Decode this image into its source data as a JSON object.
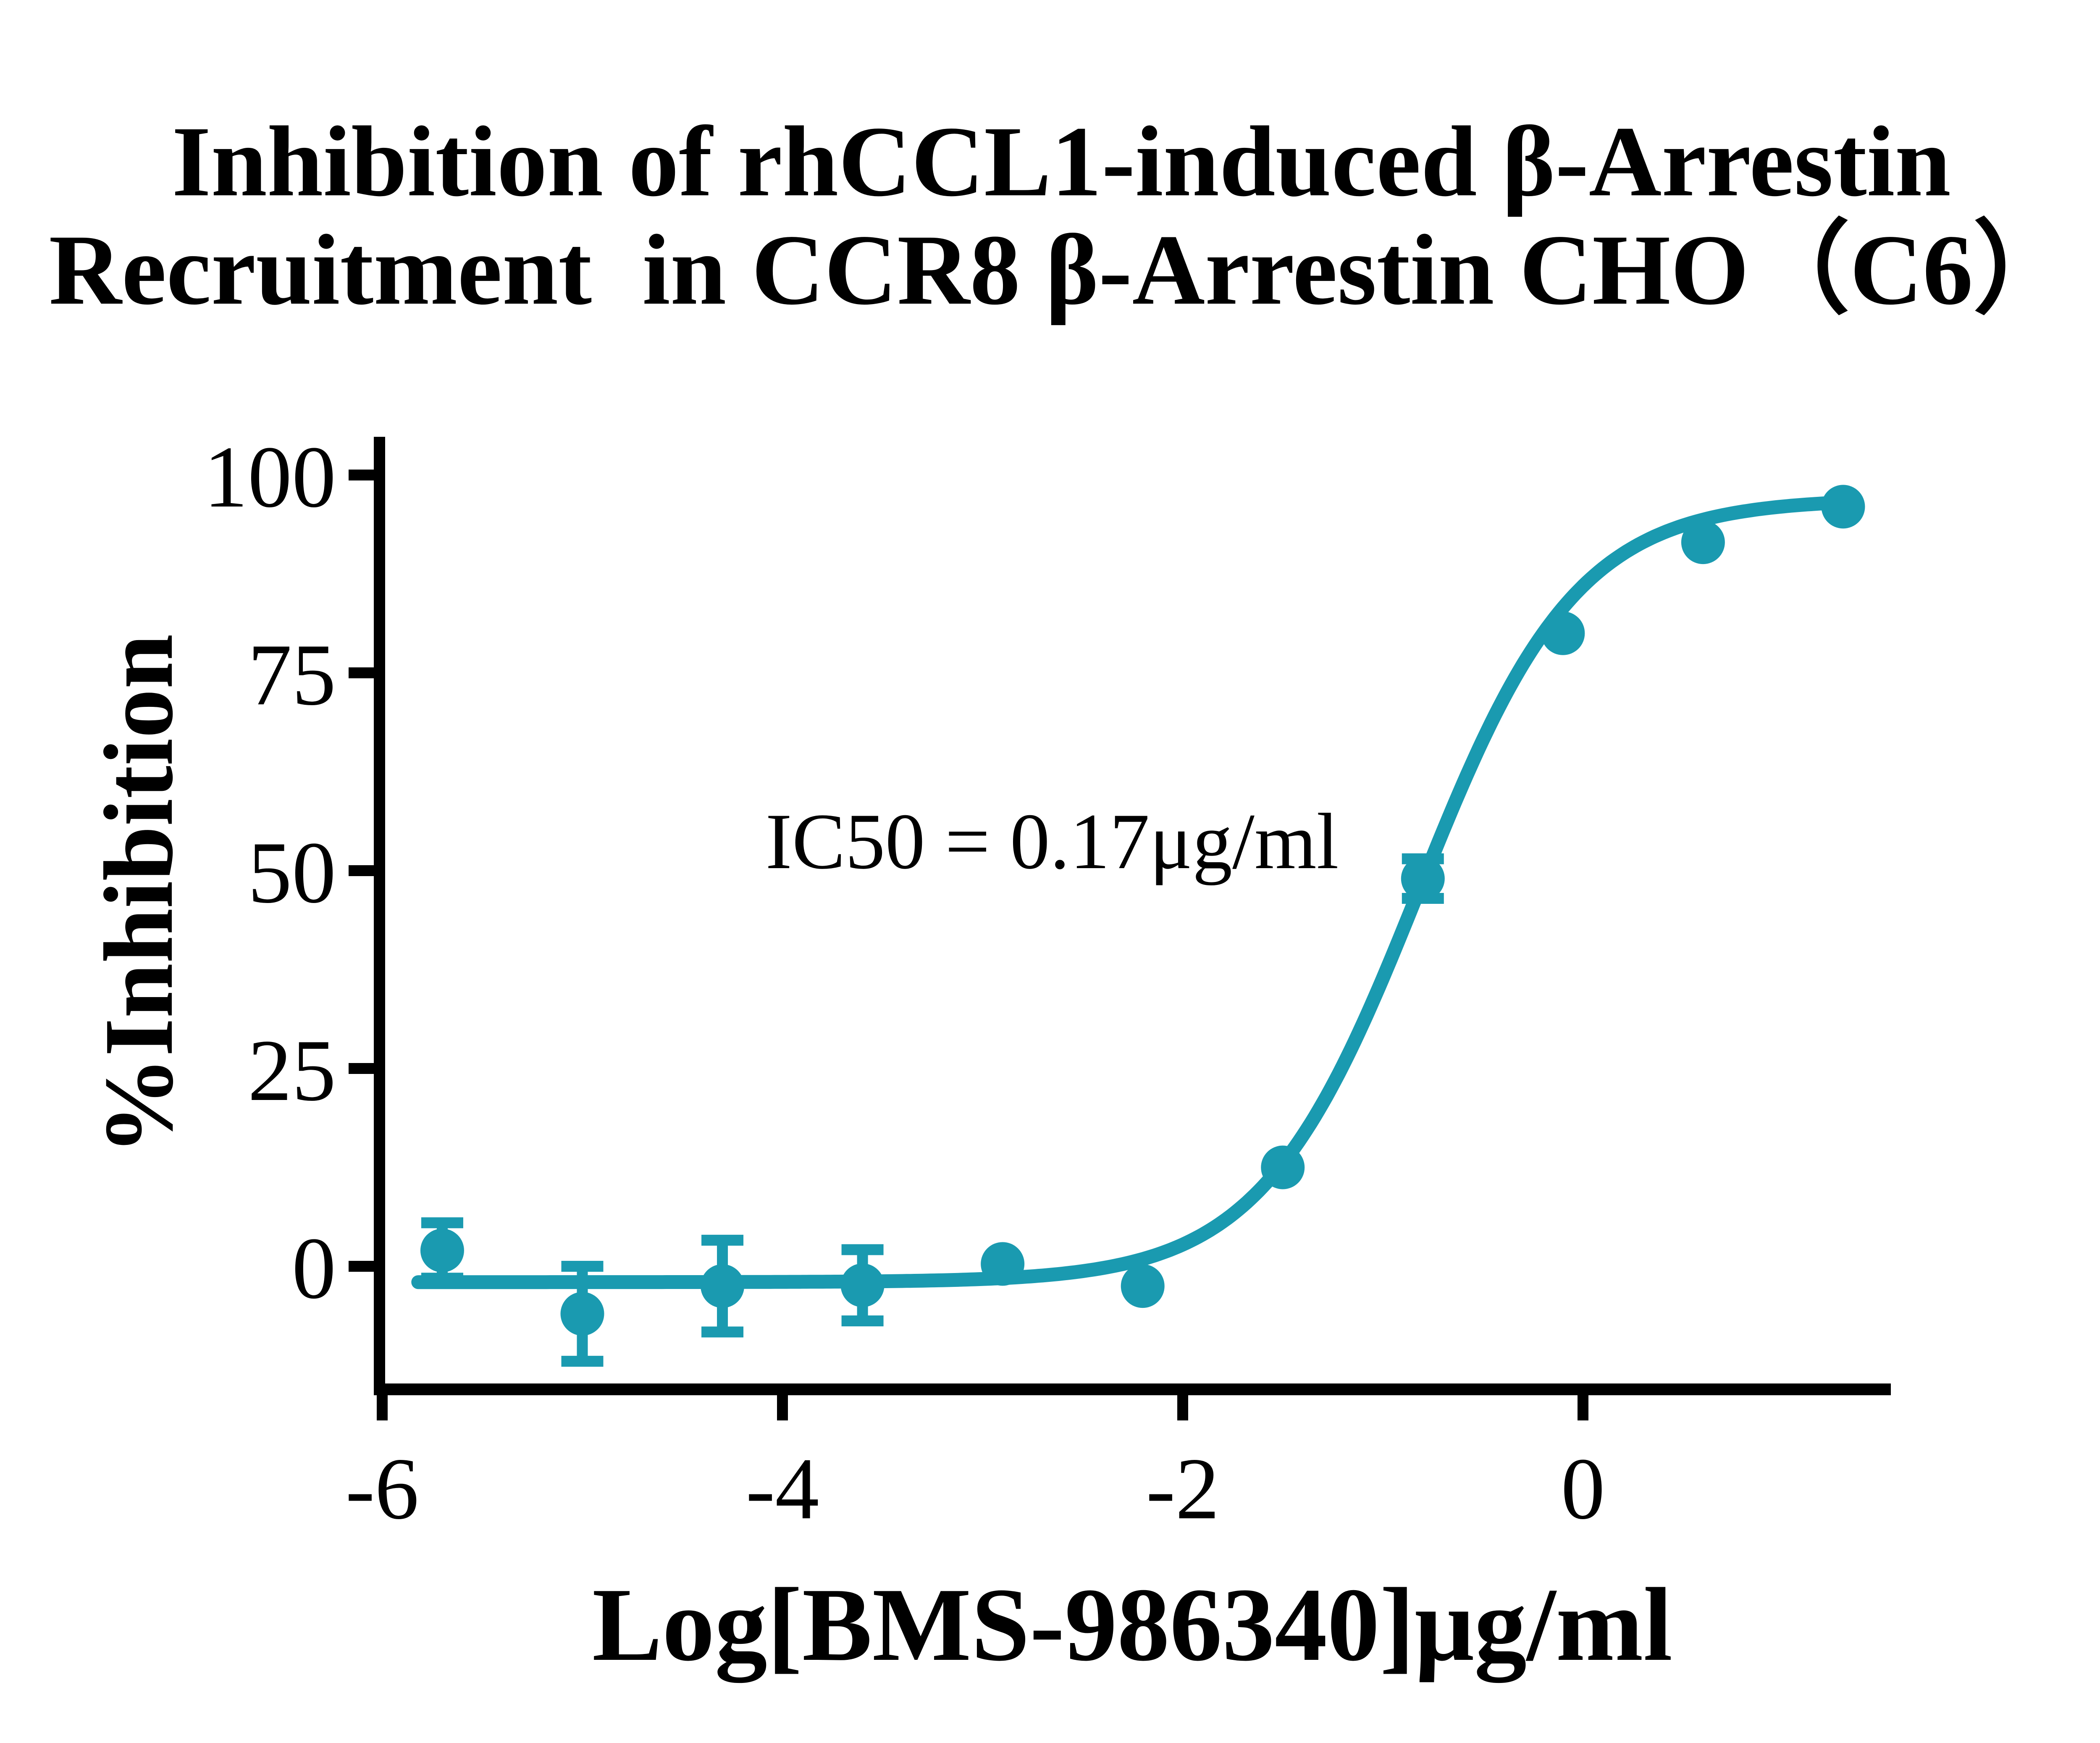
{
  "title": {
    "line1": "Inhibition of rhCCL1-induced β-Arrestin",
    "line2": "Recruitment  in CCR8 β-Arrestin CHO（C6）"
  },
  "annotation": {
    "text": "IC50 = 0.17μg/ml"
  },
  "colors": {
    "curve": "#1A9AB0",
    "axis": "#000000",
    "text": "#000000",
    "background": "#FFFFFF"
  },
  "chart_data": {
    "type": "scatter",
    "title": "Inhibition of rhCCL1-induced β-Arrestin Recruitment in CCR8 β-Arrestin CHO（C6）",
    "xlabel": "Log[BMS-986340]μg/ml",
    "ylabel": "%Inhibition",
    "x_ticks": [
      -6,
      -4,
      -2,
      0
    ],
    "x_tick_labels": [
      "-6",
      "-4",
      "-2",
      "0"
    ],
    "y_ticks": [
      0,
      25,
      50,
      75,
      100
    ],
    "y_tick_labels": [
      "0",
      "25",
      "50",
      "75",
      "100"
    ],
    "xlim": [
      -6.05,
      1.55
    ],
    "ylim": [
      -15.5,
      105
    ],
    "grid": false,
    "legend": "none",
    "points": [
      {
        "x": -5.7,
        "y": 2,
        "err": 3.5
      },
      {
        "x": -5.0,
        "y": -6,
        "err": 6
      },
      {
        "x": -4.3,
        "y": -2.5,
        "err": 5.8
      },
      {
        "x": -3.6,
        "y": -2.4,
        "err": 4.5
      },
      {
        "x": -2.9,
        "y": 0.3,
        "err": 0
      },
      {
        "x": -2.2,
        "y": -2.5,
        "err": 0
      },
      {
        "x": -1.5,
        "y": 12.5,
        "err": 0
      },
      {
        "x": -0.8,
        "y": 49,
        "err": 2.5
      },
      {
        "x": -0.1,
        "y": 80,
        "err": 0
      },
      {
        "x": 0.6,
        "y": 91.5,
        "err": 0
      },
      {
        "x": 1.3,
        "y": 96,
        "err": 0
      }
    ],
    "fit_curve": {
      "model": "four-parameter-logistic",
      "bottom": -2,
      "top": 97,
      "logIC50": -0.82,
      "hill": 1.1,
      "x_range": [
        -5.82,
        1.3
      ]
    },
    "ic50_label": "IC50 = 0.17μg/ml"
  }
}
